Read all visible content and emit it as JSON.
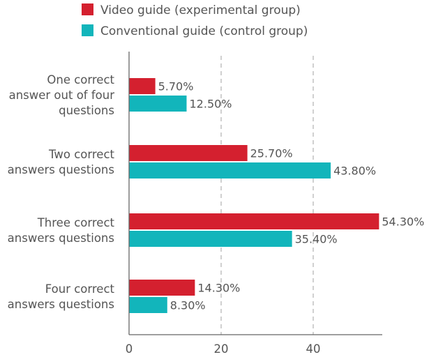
{
  "chart_data": {
    "type": "bar",
    "orientation": "horizontal",
    "categories": [
      [
        "One correct",
        "answer out of four",
        "questions"
      ],
      [
        "Two correct",
        "answers questions"
      ],
      [
        "Three correct",
        "answers questions"
      ],
      [
        "Four correct",
        "answers questions"
      ]
    ],
    "series": [
      {
        "name": "Video guide (experimental group)",
        "color": "#d4202f",
        "values": [
          5.7,
          25.7,
          54.3,
          14.3
        ],
        "labels": [
          "5.70%",
          "25.70%",
          "54.30%",
          "14.30%"
        ]
      },
      {
        "name": "Conventional guide (control group)",
        "color": "#12b5bb",
        "values": [
          12.5,
          43.8,
          35.4,
          8.3
        ],
        "labels": [
          "12.50%",
          "43.80%",
          "35.40%",
          "8.30%"
        ]
      }
    ],
    "xlim": [
      0,
      55
    ],
    "xticks": [
      0,
      20,
      40
    ],
    "xtick_labels": [
      "0",
      "20",
      "40"
    ],
    "gridlines": "vertical-dashed",
    "legend_position": "top-left",
    "axis_color": "#666666",
    "grid_color": "#b0b0b0"
  }
}
